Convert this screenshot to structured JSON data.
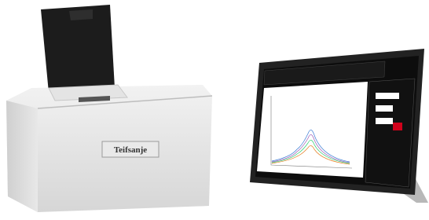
{
  "product": {
    "brand_label": "Teifsanje"
  }
}
